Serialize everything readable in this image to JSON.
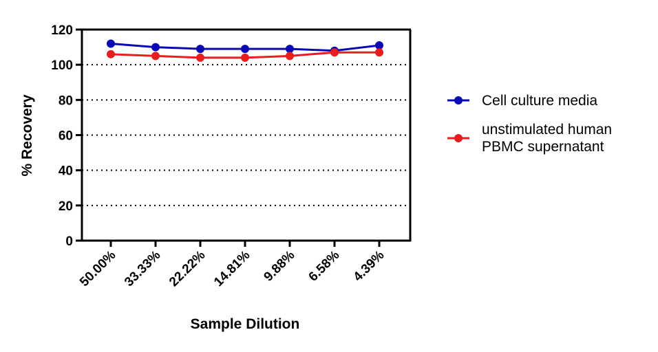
{
  "chart_data": {
    "type": "line",
    "title": "",
    "xlabel": "Sample Dilution",
    "ylabel": "% Recovery",
    "categories": [
      "50.00%",
      "33.33%",
      "22.22%",
      "14.81%",
      "9.88%",
      "6.58%",
      "4.39%"
    ],
    "ylim": [
      0,
      120
    ],
    "yticks": [
      0,
      20,
      40,
      60,
      80,
      100,
      120
    ],
    "grid": "dotted horizontal lines at 20, 40, 60, 80, 100",
    "legend_position": "right",
    "series": [
      {
        "name": "Cell culture media",
        "color": "#0a0ab4",
        "values": [
          112,
          110,
          109,
          109,
          109,
          108,
          111
        ]
      },
      {
        "name": "unstimulated human PBMC supernatant",
        "name_lines": [
          "unstimulated human",
          "PBMC supernatant"
        ],
        "color": "#e61e1e",
        "values": [
          106,
          105,
          104,
          104,
          105,
          107,
          107
        ]
      }
    ]
  }
}
